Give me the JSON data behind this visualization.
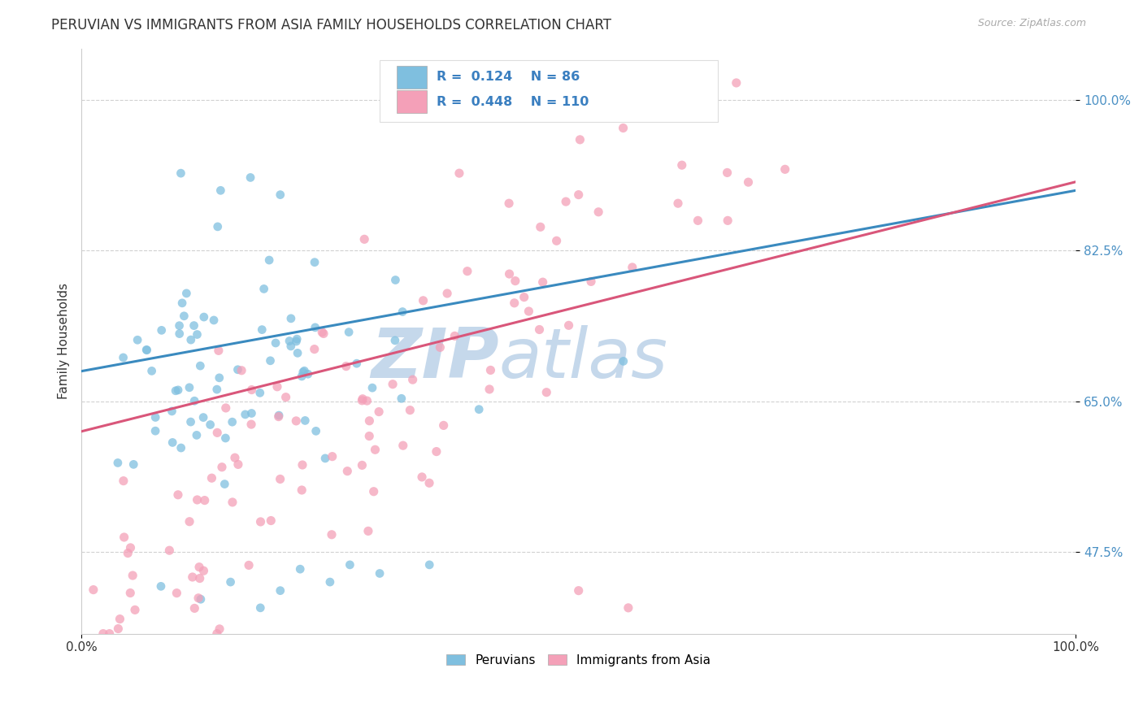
{
  "title": "PERUVIAN VS IMMIGRANTS FROM ASIA FAMILY HOUSEHOLDS CORRELATION CHART",
  "source": "Source: ZipAtlas.com",
  "ylabel": "Family Households",
  "xlim": [
    0.0,
    1.0
  ],
  "ylim": [
    0.38,
    1.06
  ],
  "yticks": [
    0.475,
    0.65,
    0.825,
    1.0
  ],
  "ytick_labels": [
    "47.5%",
    "65.0%",
    "82.5%",
    "100.0%"
  ],
  "xtick_labels": [
    "0.0%",
    "100.0%"
  ],
  "xticks": [
    0.0,
    1.0
  ],
  "blue_R": 0.124,
  "blue_N": 86,
  "pink_R": 0.448,
  "pink_N": 110,
  "blue_color": "#7fbfdf",
  "pink_color": "#f4a0b8",
  "blue_line_color": "#3a8abf",
  "pink_line_color": "#d9567a",
  "watermark_zip": "ZIP",
  "watermark_atlas": "atlas",
  "watermark_color": "#c5d8eb",
  "background_color": "#ffffff",
  "grid_color": "#cccccc",
  "title_fontsize": 12,
  "blue_line_start_y": 0.685,
  "blue_line_end_y": 0.895,
  "pink_line_start_y": 0.615,
  "pink_line_end_y": 0.905
}
